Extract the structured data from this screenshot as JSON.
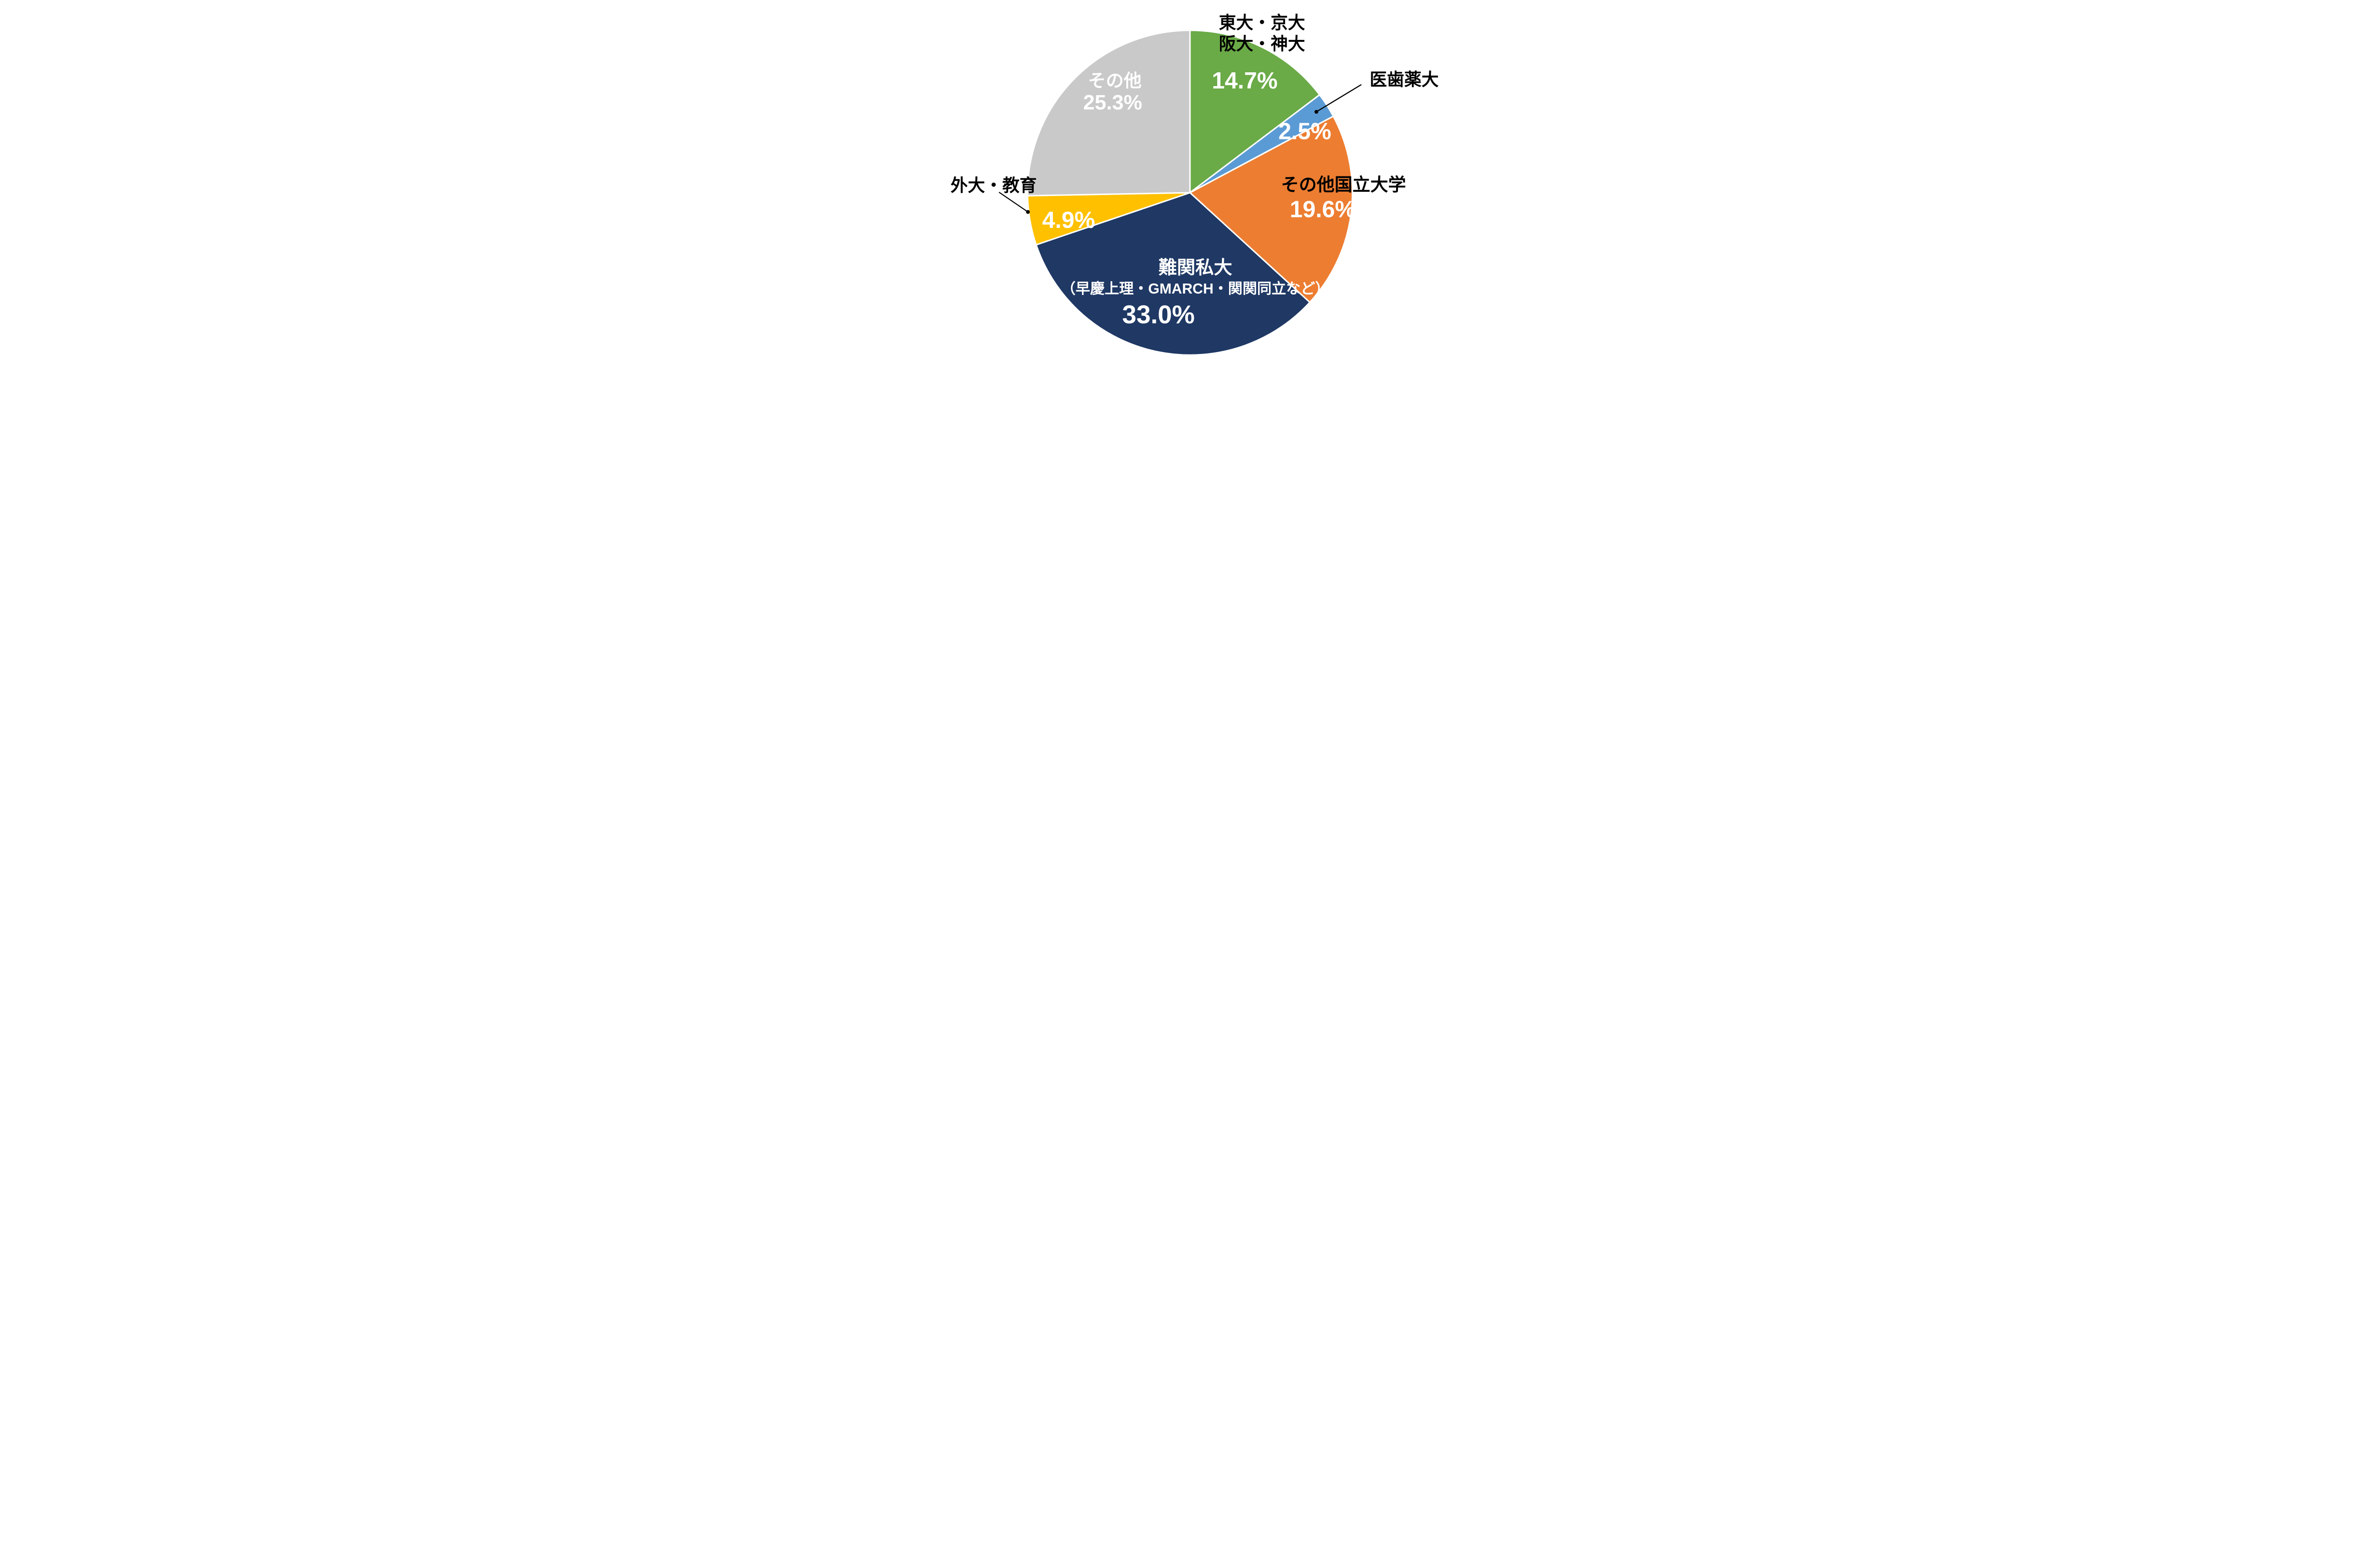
{
  "figure": {
    "background": "#ffffff",
    "separator_color": "#ffffff",
    "leader_line_color": "#000000"
  },
  "chart_data": {
    "type": "pie",
    "title": "",
    "start_angle_deg": 0,
    "direction": "clockwise",
    "unit": "%",
    "legend": "none",
    "slices": [
      {
        "id": "todai-kyodai-handai-shindai",
        "label_lines": [
          "東大・京大",
          "阪大・神大"
        ],
        "value": 14.7,
        "pct_label": "14.7%",
        "color": "#6aaa47",
        "label_color": "#000000",
        "pct_color": "#ffffff"
      },
      {
        "id": "ishiyakudai",
        "label_lines": [
          "医歯薬大"
        ],
        "value": 2.5,
        "pct_label": "2.5%",
        "color": "#5b9bd5",
        "label_color": "#000000",
        "pct_color": "#ffffff"
      },
      {
        "id": "sonota-kokuritsu-daigaku",
        "label_lines": [
          "その他国立大学"
        ],
        "value": 19.6,
        "pct_label": "19.6%",
        "color": "#ed7d31",
        "label_color": "#000000",
        "pct_color": "#ffffff"
      },
      {
        "id": "nankan-shidai",
        "label_lines": [
          "難関私大",
          "（早慶上理・GMARCH・関関同立など）"
        ],
        "value": 33.0,
        "pct_label": "33.0%",
        "color": "#1f3864",
        "label_color": "#ffffff",
        "pct_color": "#ffffff"
      },
      {
        "id": "gaidai-kyoiku",
        "label_lines": [
          "外大・教育"
        ],
        "value": 4.9,
        "pct_label": "4.9%",
        "color": "#ffc000",
        "label_color": "#000000",
        "pct_color": "#ffffff"
      },
      {
        "id": "sonota",
        "label_lines": [
          "その他"
        ],
        "value": 25.3,
        "pct_label": "25.3%",
        "color": "#c9c9c9",
        "label_color": "#ffffff",
        "pct_color": "#ffffff"
      }
    ]
  }
}
